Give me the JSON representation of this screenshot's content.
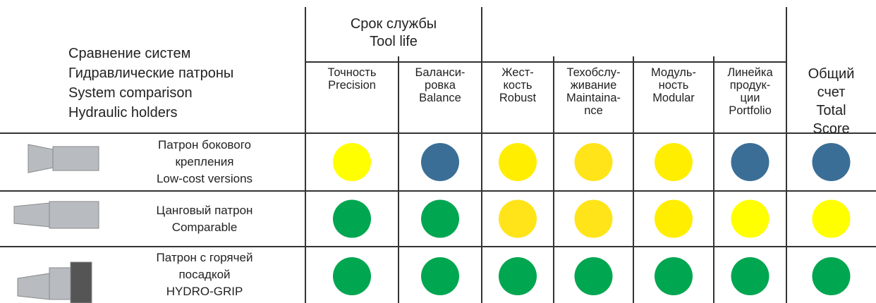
{
  "header": {
    "title_lines": [
      "Сравнение систем",
      "Гидравлические патроны",
      "System comparison",
      "Hydraulic holders"
    ],
    "group_label_lines": [
      "Срок службы",
      "Tool life"
    ],
    "columns": [
      {
        "lines": [
          "Точность",
          "Precision"
        ]
      },
      {
        "lines": [
          "Баланси-",
          "ровка",
          "Balance"
        ]
      },
      {
        "lines": [
          "Жест-",
          "кость",
          "Robust"
        ]
      },
      {
        "lines": [
          "Техобслу-",
          "живание",
          "Maintaina-",
          "nce"
        ]
      },
      {
        "lines": [
          "Модуль-",
          "ность",
          "Modular"
        ]
      },
      {
        "lines": [
          "Линейка",
          "продук-",
          "ции",
          "Portfolio"
        ]
      }
    ],
    "total_lines": [
      "Общий",
      "счет",
      "Total",
      "Score"
    ]
  },
  "rows": [
    {
      "label_lines": [
        "Патрон бокового",
        "крепления",
        "Low-cost versions"
      ],
      "ratings": [
        "#ffff00",
        "#3a6e96",
        "#ffee00",
        "#ffe41a",
        "#ffee00",
        "#3a6e96",
        "#3a6e96"
      ]
    },
    {
      "label_lines": [
        "Цанговый патрон",
        "Comparable"
      ],
      "ratings": [
        "#00a650",
        "#00a650",
        "#ffe41a",
        "#ffe41a",
        "#ffee00",
        "#ffff00",
        "#ffff00"
      ]
    },
    {
      "label_lines": [
        "Патрон с горячей",
        "посадкой",
        "HYDRO-GRIP"
      ],
      "ratings": [
        "#00a650",
        "#00a650",
        "#00a650",
        "#00a650",
        "#00a650",
        "#00a650",
        "#00a650"
      ]
    }
  ]
}
